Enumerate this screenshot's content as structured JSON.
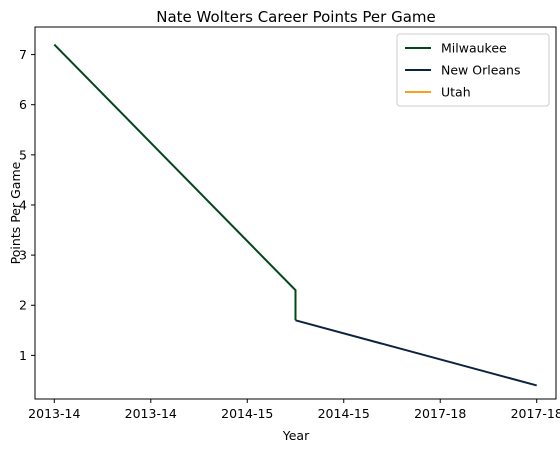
{
  "chart_data": {
    "type": "line",
    "title": "Nate Wolters Career Points Per Game",
    "xlabel": "Year",
    "ylabel": "Points Per Game",
    "x_tick_labels": [
      "2013-14",
      "2013-14",
      "2014-15",
      "2014-15",
      "2017-18",
      "2017-18"
    ],
    "y_ticks": [
      1,
      2,
      3,
      4,
      5,
      6,
      7
    ],
    "xlim": [
      -0.2,
      5.2
    ],
    "ylim": [
      0.13,
      7.55
    ],
    "grid": false,
    "legend_position": "top-right",
    "series": [
      {
        "name": "Milwaukee",
        "color": "#00471B",
        "points": [
          [
            0,
            7.2
          ],
          [
            2.5,
            2.3
          ],
          [
            2.5,
            1.7
          ]
        ]
      },
      {
        "name": "New Orleans",
        "color": "#0C2340",
        "points": [
          [
            2.5,
            1.7
          ],
          [
            5,
            0.4
          ]
        ]
      },
      {
        "name": "Utah",
        "color": "#F9A01B",
        "points": []
      }
    ]
  }
}
